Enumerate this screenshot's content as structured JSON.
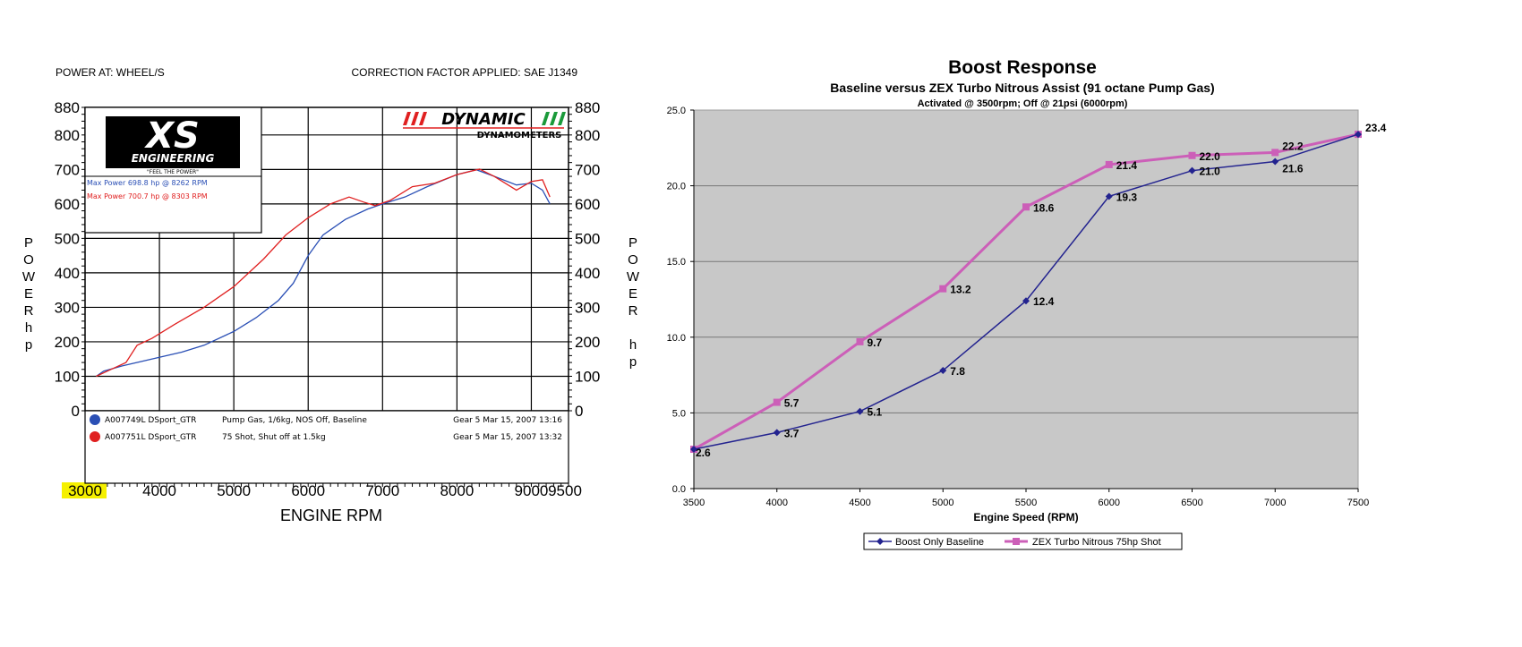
{
  "chart_data": [
    {
      "type": "line",
      "header_left": "POWER AT: WHEEL/S",
      "header_right": "CORRECTION FACTOR APPLIED: SAE J1349",
      "xlabel": "ENGINE RPM",
      "ylabel": "POWER hp",
      "ylabel_letters": [
        "P",
        "O",
        "W",
        "E",
        "R",
        "",
        "h",
        "p"
      ],
      "xlim": [
        3000,
        9500
      ],
      "ylim": [
        0,
        880
      ],
      "x_ticks": [
        3000,
        4000,
        5000,
        6000,
        7000,
        8000,
        9000,
        9500
      ],
      "y_ticks": [
        0,
        100,
        200,
        300,
        400,
        500,
        600,
        700,
        800,
        880
      ],
      "highlighted_tick": "3000",
      "grid": true,
      "logo_left": {
        "text": "XS",
        "sub": "ENGINEERING",
        "tagline": "\"FEEL THE POWER\""
      },
      "logo_right": {
        "text": "DYNAMIC",
        "sub": "DYNAMOMETERS"
      },
      "annotations": [
        "Max Power 698.8 hp @ 8262 RPM",
        "Max Power 700.7 hp @ 8303 RPM"
      ],
      "series": [
        {
          "name": "A007749L DSport_GTR",
          "description": "Pump Gas, 1/6kg, NOS Off, Baseline",
          "date": "Gear 5 Mar 15, 2007 13:16",
          "color": "#2a4fb5",
          "x": [
            3150,
            3250,
            3500,
            4000,
            4300,
            4600,
            5000,
            5300,
            5600,
            5800,
            6000,
            6200,
            6500,
            6800,
            7000,
            7300,
            7600,
            8000,
            8262,
            8500,
            8800,
            9000,
            9150,
            9250
          ],
          "y": [
            100,
            115,
            130,
            155,
            170,
            190,
            230,
            270,
            320,
            370,
            450,
            510,
            555,
            585,
            600,
            620,
            650,
            685,
            699,
            680,
            655,
            660,
            640,
            600
          ]
        },
        {
          "name": "A007751L DSport_GTR",
          "description": "75 Shot, Shut off at 1.5kg",
          "date": "Gear 5 Mar 15, 2007 13:32",
          "color": "#e02020",
          "x": [
            3150,
            3300,
            3550,
            3700,
            3900,
            4200,
            4600,
            5000,
            5400,
            5700,
            6000,
            6300,
            6550,
            6750,
            6900,
            7100,
            7400,
            7700,
            8000,
            8303,
            8500,
            8800,
            9000,
            9150,
            9250
          ],
          "y": [
            100,
            115,
            140,
            190,
            210,
            250,
            300,
            360,
            440,
            510,
            560,
            600,
            620,
            605,
            595,
            610,
            650,
            660,
            685,
            701,
            680,
            640,
            665,
            670,
            620
          ]
        }
      ]
    },
    {
      "type": "line",
      "title": "Boost Response",
      "subtitle": "Baseline versus ZEX Turbo Nitrous Assist (91 octane Pump Gas)",
      "subtitle2": "Activated @ 3500rpm; Off @ 21psi (6000rpm)",
      "xlabel": "Engine Speed (RPM)",
      "xlim": [
        3500,
        7500
      ],
      "ylim": [
        0,
        25
      ],
      "x_ticks": [
        3500,
        4000,
        4500,
        5000,
        5500,
        6000,
        6500,
        7000,
        7500
      ],
      "y_ticks": [
        "0.0",
        "5.0",
        "10.0",
        "15.0",
        "20.0",
        "25.0"
      ],
      "grid": true,
      "background": "#c8c8c8",
      "legend_position": "bottom",
      "series": [
        {
          "name": "Boost Only Baseline",
          "color": "#23238f",
          "marker": "diamond",
          "x": [
            3500,
            4000,
            4500,
            5000,
            5500,
            6000,
            6500,
            7000,
            7500
          ],
          "y": [
            2.6,
            3.7,
            5.1,
            7.8,
            12.4,
            19.3,
            21.0,
            21.6,
            23.4
          ],
          "labels": [
            "2.6",
            "3.7",
            "5.1",
            "7.8",
            "12.4",
            "19.3",
            "21.0",
            "21.6",
            "23.4"
          ]
        },
        {
          "name": "ZEX Turbo Nitrous 75hp Shot",
          "color": "#cc5fb8",
          "marker": "square",
          "x": [
            3500,
            4000,
            4500,
            5000,
            5500,
            6000,
            6500,
            7000,
            7500
          ],
          "y": [
            2.6,
            5.7,
            9.7,
            13.2,
            18.6,
            21.4,
            22.0,
            22.2,
            23.4
          ],
          "labels": [
            "2.6",
            "5.7",
            "9.7",
            "13.2",
            "18.6",
            "21.4",
            "22.0",
            "22.2",
            "23.4"
          ]
        }
      ]
    }
  ]
}
